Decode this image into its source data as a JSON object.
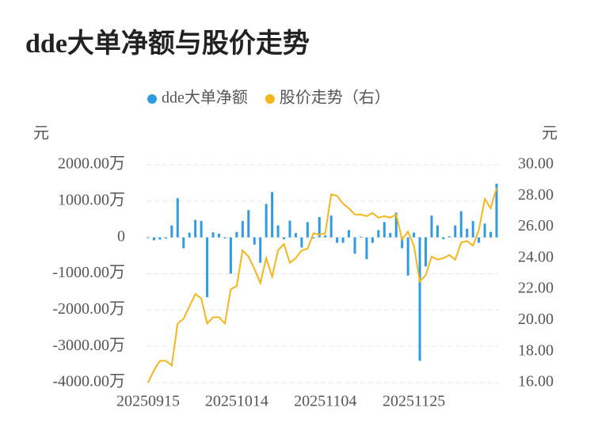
{
  "chart_data": {
    "type": "bar-line",
    "title": "dde大单净额与股价走势",
    "y_unit": "元",
    "y2_unit": "元",
    "categories": [
      "20250915",
      null,
      null,
      null,
      null,
      null,
      null,
      null,
      null,
      null,
      null,
      null,
      null,
      null,
      null,
      "20251014",
      null,
      null,
      null,
      null,
      null,
      null,
      null,
      null,
      null,
      null,
      null,
      null,
      null,
      null,
      "20251104",
      null,
      null,
      null,
      null,
      null,
      null,
      null,
      null,
      null,
      null,
      null,
      null,
      null,
      null,
      "20251125",
      null,
      null,
      null,
      null,
      null,
      null,
      null,
      null,
      null,
      null,
      null,
      null,
      null,
      null
    ],
    "series": [
      {
        "name": "dde大单净额",
        "type": "bar",
        "color": "#2f9be3",
        "values": [
          -20,
          -80,
          -60,
          -30,
          330,
          1080,
          -300,
          130,
          480,
          450,
          -1650,
          140,
          100,
          -30,
          -1000,
          150,
          450,
          750,
          -200,
          -700,
          920,
          1250,
          330,
          -50,
          460,
          120,
          -280,
          420,
          -30,
          560,
          60,
          600,
          -150,
          -150,
          200,
          -450,
          20,
          -600,
          -150,
          200,
          420,
          120,
          680,
          -300,
          -1050,
          130,
          -3400,
          -800,
          600,
          330,
          -50,
          30,
          330,
          720,
          240,
          450,
          -150,
          380,
          150,
          1480
        ]
      },
      {
        "name": "股价走势（右）",
        "type": "line",
        "axis": "y2",
        "color": "#f5b51d",
        "values": [
          16.0,
          16.8,
          17.4,
          17.4,
          17.1,
          19.8,
          20.1,
          20.9,
          21.7,
          21.4,
          19.8,
          20.2,
          20.2,
          19.8,
          22.0,
          22.2,
          24.5,
          24.1,
          23.3,
          22.4,
          24.0,
          22.8,
          24.5,
          24.9,
          23.7,
          24.0,
          24.5,
          24.6,
          25.6,
          25.5,
          25.6,
          28.1,
          28.0,
          27.5,
          27.2,
          26.8,
          26.8,
          26.7,
          26.9,
          26.6,
          26.7,
          26.6,
          26.8,
          25.2,
          25.7,
          24.8,
          22.5,
          22.9,
          24.1,
          23.9,
          24.0,
          24.2,
          23.9,
          25.0,
          25.1,
          24.8,
          25.8,
          27.8,
          27.2,
          28.5
        ]
      }
    ],
    "ylim": [
      -4000,
      2000
    ],
    "yticks": [
      {
        "value": 2000,
        "label": "2000.00万"
      },
      {
        "value": 1000,
        "label": "1000.00万"
      },
      0,
      {
        "value": -1000,
        "label": "-1000.00万"
      },
      {
        "value": -2000,
        "label": "-2000.00万"
      },
      {
        "value": -3000,
        "label": "-3000.00万"
      },
      {
        "value": -4000,
        "label": "-4000.00万"
      }
    ],
    "y2lim": [
      16,
      30
    ],
    "y2ticks": [
      {
        "value": 30,
        "label": "30.00"
      },
      {
        "value": 28,
        "label": "28.00"
      },
      {
        "value": 26,
        "label": "26.00"
      },
      {
        "value": 24,
        "label": "24.00"
      },
      {
        "value": 22,
        "label": "22.00"
      },
      {
        "value": 20,
        "label": "20.00"
      },
      {
        "value": 18,
        "label": "18.00"
      },
      {
        "value": 16,
        "label": "16.00"
      }
    ],
    "grid": true
  }
}
